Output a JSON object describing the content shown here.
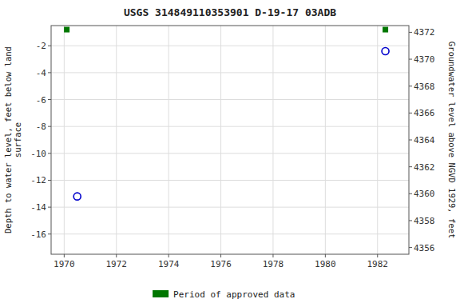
{
  "chart_data": {
    "type": "scatter",
    "title": "USGS 314849110353901 D-19-17 03ADB",
    "series": [
      {
        "x": [
          1970.5,
          1982.3
        ],
        "values": [
          -13.2,
          -2.4
        ],
        "color": "#0000cc",
        "marker": "circle-open"
      },
      {
        "name": "Period of approved data",
        "x": [
          1970.1,
          1982.3
        ],
        "values": [
          -0.8,
          -0.8
        ],
        "color": "#007700",
        "marker": "square"
      }
    ],
    "xlim": [
      1969.5,
      1983.2
    ],
    "xticks": [
      1970,
      1972,
      1974,
      1976,
      1978,
      1980,
      1982
    ],
    "ylim": [
      -17.5,
      -0.5
    ],
    "yticks": [
      -16,
      -14,
      -12,
      -10,
      -8,
      -6,
      -4,
      -2
    ],
    "y2lim": [
      4355.5,
      4372.5
    ],
    "y2ticks": [
      4356,
      4358,
      4360,
      4362,
      4364,
      4366,
      4368,
      4370,
      4372
    ],
    "ylabel": "Depth to water level, feet below land\nsurface",
    "y2label": "Groundwater level above NGVD 1929, feet",
    "grid": true,
    "legend": "bottom"
  }
}
